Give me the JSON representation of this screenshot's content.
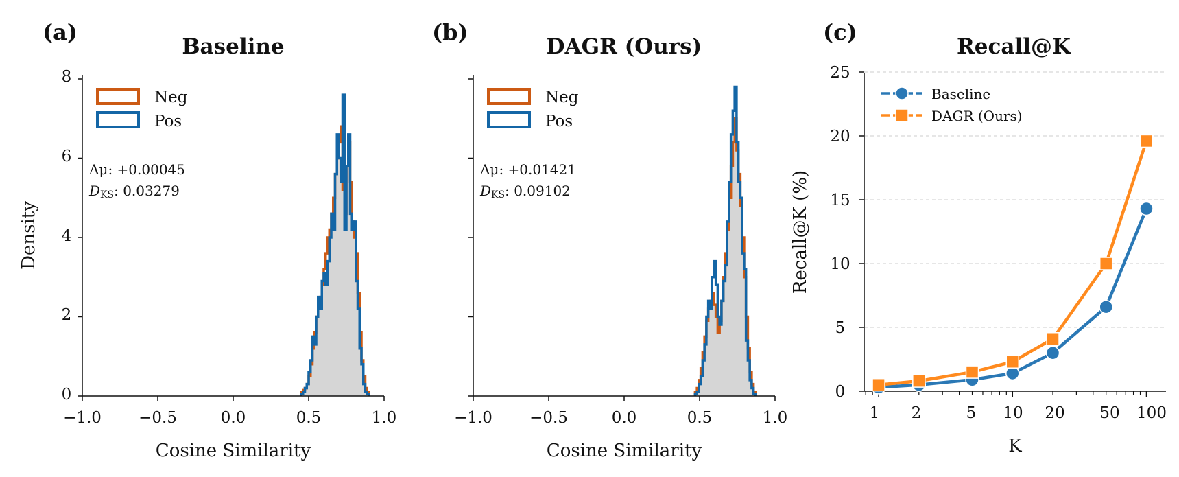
{
  "colors": {
    "neg": "#cc5a14",
    "pos": "#1466a6",
    "fill": "#d6d6d6",
    "baseline_line": "#2a78b5",
    "dagr_line": "#ff8a1e"
  },
  "panel_a": {
    "letter": "(a)",
    "title": "Baseline",
    "ylabel": "Density",
    "xlabel": "Cosine Similarity",
    "xticks": [
      "−1.0",
      "−0.5",
      "0.0",
      "0.5",
      "1.0"
    ],
    "yticks": [
      "0",
      "2",
      "4",
      "6",
      "8"
    ],
    "legend_neg": "Neg",
    "legend_pos": "Pos",
    "dmu_label": "Δμ: +0.00045",
    "dks_prefix": "D",
    "dks_sub": "KS",
    "dks_value": ": 0.03279"
  },
  "panel_b": {
    "letter": "(b)",
    "title": "DAGR (Ours)",
    "xlabel": "Cosine Similarity",
    "xticks": [
      "−1.0",
      "−0.5",
      "0.0",
      "0.5",
      "1.0"
    ],
    "legend_neg": "Neg",
    "legend_pos": "Pos",
    "dmu_label": "Δμ: +0.01421",
    "dks_prefix": "D",
    "dks_sub": "KS",
    "dks_value": ": 0.09102"
  },
  "panel_c": {
    "letter": "(c)",
    "title": "Recall@K",
    "ylabel": "Recall@K (%)",
    "xlabel": "K",
    "yticks": [
      "0",
      "5",
      "10",
      "15",
      "20",
      "25"
    ],
    "xticks": [
      "1",
      "2",
      "5",
      "10",
      "20",
      "50",
      "100"
    ],
    "legend_baseline": "Baseline",
    "legend_dagr": "DAGR (Ours)"
  },
  "chart_data": [
    {
      "type": "histogram",
      "title": "Baseline",
      "xlabel": "Cosine Similarity",
      "ylabel": "Density",
      "xlim": [
        -1.0,
        1.0
      ],
      "ylim": [
        0,
        8
      ],
      "bin_width": 0.0125,
      "bin_start": 0.45,
      "series": [
        {
          "name": "Neg",
          "values": [
            0.1,
            0.15,
            0.2,
            0.3,
            0.5,
            0.8,
            1.2,
            1.6,
            2.0,
            2.3,
            2.5,
            2.8,
            3.2,
            3.6,
            4.0,
            4.2,
            4.6,
            5.0,
            5.6,
            6.0,
            6.4,
            6.8,
            5.2,
            4.6,
            5.8,
            6.4,
            5.4,
            4.4,
            4.0,
            3.6,
            2.6,
            1.6,
            0.9,
            0.5,
            0.2,
            0.1
          ]
        },
        {
          "name": "Pos",
          "values": [
            0.05,
            0.1,
            0.2,
            0.3,
            0.6,
            0.9,
            1.5,
            1.3,
            2.0,
            2.5,
            2.2,
            2.9,
            3.1,
            2.8,
            3.4,
            4.0,
            4.6,
            4.2,
            5.6,
            6.6,
            6.0,
            5.4,
            7.6,
            4.2,
            5.8,
            6.6,
            4.6,
            4.2,
            4.4,
            2.9,
            2.2,
            1.2,
            0.8,
            0.3,
            0.1,
            0.05
          ]
        }
      ],
      "annotations": [
        "Δμ: +0.00045",
        "D_KS: 0.03279"
      ]
    },
    {
      "type": "histogram",
      "title": "DAGR (Ours)",
      "xlabel": "Cosine Similarity",
      "xlim": [
        -1.0,
        1.0
      ],
      "ylim": [
        0,
        8
      ],
      "bin_width": 0.0125,
      "bin_start": 0.47,
      "series": [
        {
          "name": "Neg",
          "values": [
            0.1,
            0.2,
            0.4,
            0.7,
            1.1,
            1.5,
            1.9,
            2.2,
            2.4,
            2.6,
            2.3,
            2.0,
            1.6,
            1.9,
            2.4,
            3.0,
            3.6,
            4.2,
            5.0,
            5.8,
            6.4,
            7.0,
            6.2,
            5.6,
            4.8,
            4.0,
            3.0,
            2.0,
            1.2,
            0.6,
            0.3,
            0.1
          ]
        },
        {
          "name": "Pos",
          "values": [
            0.05,
            0.1,
            0.3,
            0.5,
            0.9,
            1.3,
            2.0,
            2.4,
            2.2,
            3.0,
            3.4,
            2.8,
            2.0,
            1.8,
            2.4,
            2.9,
            3.3,
            4.4,
            5.4,
            6.6,
            7.2,
            7.8,
            6.4,
            5.4,
            5.0,
            3.6,
            3.2,
            1.4,
            0.9,
            0.4,
            0.2,
            0.05
          ]
        }
      ],
      "annotations": [
        "Δμ: +0.01421",
        "D_KS: 0.09102"
      ]
    },
    {
      "type": "line",
      "title": "Recall@K",
      "xlabel": "K",
      "ylabel": "Recall@K (%)",
      "x": [
        1,
        2,
        5,
        10,
        20,
        50,
        100
      ],
      "xscale": "log",
      "ylim": [
        0,
        25
      ],
      "grid": "horizontal dashed",
      "legend": "top-left",
      "series": [
        {
          "name": "Baseline",
          "marker": "circle",
          "values": [
            0.3,
            0.5,
            0.9,
            1.4,
            3.0,
            6.6,
            14.3
          ]
        },
        {
          "name": "DAGR (Ours)",
          "marker": "square",
          "values": [
            0.5,
            0.8,
            1.5,
            2.3,
            4.1,
            10.0,
            19.6
          ]
        }
      ]
    }
  ]
}
